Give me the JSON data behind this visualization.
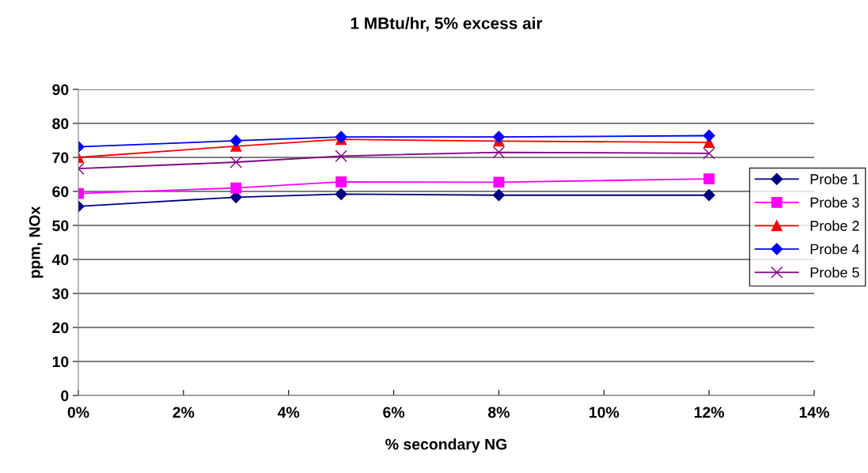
{
  "chart_data": {
    "type": "line",
    "title": "1 MBtu/hr, 5% excess air",
    "xlabel": "% secondary NG",
    "ylabel": "ppm, NOx",
    "x": [
      0,
      3,
      5,
      8,
      12
    ],
    "series": [
      {
        "name": "Probe 1",
        "color": "#000080",
        "marker": "diamond",
        "values": [
          55.6,
          58.3,
          59.2,
          58.9,
          58.9
        ]
      },
      {
        "name": "Probe 3",
        "color": "#ff00ff",
        "marker": "square",
        "values": [
          59.4,
          61.0,
          62.8,
          62.7,
          63.7
        ]
      },
      {
        "name": "Probe 2",
        "color": "#ff0000",
        "marker": "triangle",
        "values": [
          70.0,
          73.3,
          75.3,
          74.8,
          74.4
        ]
      },
      {
        "name": "Probe 4",
        "color": "#0000ff",
        "marker": "diamond",
        "values": [
          73.1,
          74.9,
          76.0,
          76.0,
          76.4
        ]
      },
      {
        "name": "Probe 5",
        "color": "#800080",
        "marker": "cross",
        "values": [
          66.7,
          68.6,
          70.4,
          71.5,
          71.2
        ]
      }
    ],
    "xlim": [
      0,
      14
    ],
    "xticks": [
      {
        "value": 0,
        "label": "0%"
      },
      {
        "value": 2,
        "label": "2%"
      },
      {
        "value": 4,
        "label": "4%"
      },
      {
        "value": 6,
        "label": "6%"
      },
      {
        "value": 8,
        "label": "8%"
      },
      {
        "value": 10,
        "label": "10%"
      },
      {
        "value": 12,
        "label": "12%"
      },
      {
        "value": 14,
        "label": "14%"
      }
    ],
    "ylim": [
      0,
      90
    ],
    "yticks": [
      0,
      10,
      20,
      30,
      40,
      50,
      60,
      70,
      80,
      90
    ],
    "grid": "y",
    "legend": "right"
  }
}
